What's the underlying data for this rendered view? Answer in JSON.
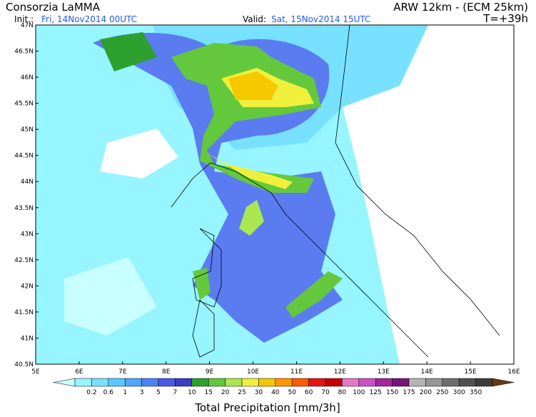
{
  "header": {
    "title": "Consorzia LaMMA",
    "model": "ARW 12km - (ECM 25km)",
    "init_label": "Init.:",
    "init": "Fri, 14Nov2014 00UTC",
    "valid_label": "Valid:",
    "valid": "Sat, 15Nov2014 15UTC",
    "step": "T=+39h"
  },
  "map": {
    "lat_labels": [
      "47N",
      "46.5N",
      "46N",
      "45.5N",
      "45N",
      "44.5N",
      "44N",
      "43.5N",
      "43N",
      "42.5N",
      "42N",
      "41.5N",
      "41N",
      "40.5N"
    ],
    "lon_labels": [
      "5E",
      "6E",
      "7E",
      "8E",
      "9E",
      "10E",
      "11E",
      "12E",
      "13E",
      "14E",
      "15E",
      "16E"
    ]
  },
  "colorbar": {
    "title": "Total Precipitation [mm/3h]",
    "labels": [
      "0.2",
      "0.6",
      "1",
      "3",
      "5",
      "7",
      "10",
      "15",
      "20",
      "25",
      "30",
      "40",
      "50",
      "60",
      "70",
      "80",
      "100",
      "125",
      "150",
      "175",
      "200",
      "250",
      "300",
      "350"
    ],
    "colors": [
      "#c8ffff",
      "#96f5ff",
      "#78e1ff",
      "#5ac8ff",
      "#50a5ff",
      "#4b82f5",
      "#4b5ae6",
      "#3c3cc8",
      "#2da02d",
      "#64c83c",
      "#aae650",
      "#f0f03c",
      "#f5c800",
      "#ff9600",
      "#ff5a00",
      "#e61414",
      "#c80000",
      "#e678c8",
      "#c850c8",
      "#a0289a",
      "#781478",
      "#b4b4b4",
      "#969696",
      "#6e6e6e",
      "#505050",
      "#3c3c3c",
      "#8c5a28",
      "#643c14"
    ]
  }
}
